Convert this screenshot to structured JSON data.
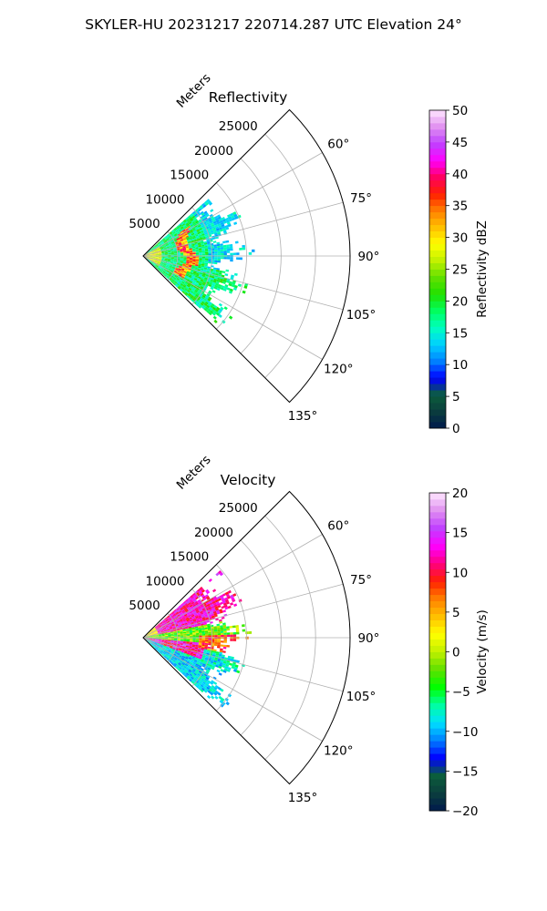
{
  "figure": {
    "suptitle": "SKYLER-HU  20231217  220714.287 UTC Elevation 24°"
  },
  "chart_data": [
    {
      "type": "heatmap",
      "projection": "polar-sector",
      "title": "Reflectivity",
      "radial_label": "Meters",
      "radial_ticks": [
        5000,
        10000,
        15000,
        20000,
        25000
      ],
      "radial_tick_labels": [
        "5000",
        "10000",
        "15000",
        "20000",
        "25000"
      ],
      "rmax": 30000,
      "azimuth_range_deg": [
        45,
        135
      ],
      "azimuth_ticks": [
        60,
        75,
        90,
        105,
        120,
        135
      ],
      "azimuth_tick_labels": [
        "60°",
        "75°",
        "90°",
        "105°",
        "120°",
        "135°"
      ],
      "grid": true,
      "data_extent_m": 15000,
      "colorbar": {
        "label": "Reflectivity dBZ",
        "min": 0,
        "max": 50,
        "ticks": [
          0,
          5,
          10,
          15,
          20,
          25,
          30,
          35,
          40,
          45,
          50
        ],
        "tick_labels": [
          "0",
          "5",
          "10",
          "15",
          "20",
          "25",
          "30",
          "35",
          "40",
          "45",
          "50"
        ],
        "stops": [
          "#001a4d",
          "#0b3d3d",
          "#0b5e3c",
          "#0000ff",
          "#0080ff",
          "#00d0ff",
          "#00ffc0",
          "#00ff60",
          "#20e000",
          "#60e000",
          "#c0f000",
          "#ffff00",
          "#ffc000",
          "#ff8000",
          "#ff2000",
          "#ff0060",
          "#ff00ff",
          "#c040ff",
          "#e090f0",
          "#ffe6ff"
        ]
      },
      "pattern": [
        {
          "theta_deg": [
            47,
            58
          ],
          "r_m": [
            0,
            14500
          ],
          "band": "green-cyan"
        },
        {
          "theta_deg": [
            58,
            80
          ],
          "r_m": [
            0,
            13500
          ],
          "band": "green-cyan"
        },
        {
          "theta_deg": [
            80,
            100
          ],
          "r_m": [
            0,
            14000
          ],
          "band": "cyan-green"
        },
        {
          "theta_deg": [
            100,
            125
          ],
          "r_m": [
            0,
            15500
          ],
          "band": "green-cyan"
        },
        {
          "theta_deg": [
            55,
            115
          ],
          "r_m": [
            5500,
            7000
          ],
          "band": "yellow-red"
        },
        {
          "theta_deg": [
            60,
            122
          ],
          "r_m": [
            1000,
            3000
          ],
          "band": "yellow-orange"
        }
      ]
    },
    {
      "type": "heatmap",
      "projection": "polar-sector",
      "title": "Velocity",
      "radial_label": "Meters",
      "radial_ticks": [
        5000,
        10000,
        15000,
        20000,
        25000
      ],
      "radial_tick_labels": [
        "5000",
        "10000",
        "15000",
        "20000",
        "25000"
      ],
      "rmax": 30000,
      "azimuth_range_deg": [
        45,
        135
      ],
      "azimuth_ticks": [
        60,
        75,
        90,
        105,
        120,
        135
      ],
      "azimuth_tick_labels": [
        "60°",
        "75°",
        "90°",
        "105°",
        "120°",
        "135°"
      ],
      "grid": true,
      "data_extent_m": 15000,
      "colorbar": {
        "label": "Velocity (m/s)",
        "min": -20,
        "max": 20,
        "ticks": [
          -20,
          -15,
          -10,
          -5,
          0,
          5,
          10,
          15,
          20
        ],
        "tick_labels": [
          "−20",
          "−15",
          "−10",
          "−5",
          "0",
          "5",
          "10",
          "15",
          "20"
        ],
        "stops": [
          "#001a4d",
          "#0b3d3d",
          "#0b5e3c",
          "#0000ff",
          "#0080ff",
          "#00e0ff",
          "#00ffa0",
          "#00ff00",
          "#60e000",
          "#c0f000",
          "#ffff00",
          "#ffc000",
          "#ff8000",
          "#ff2000",
          "#ff0080",
          "#ff00ff",
          "#c040ff",
          "#e090f0",
          "#ffe6ff"
        ]
      },
      "pattern": [
        {
          "theta_deg": [
            55,
            78
          ],
          "r_m": [
            2000,
            12500
          ],
          "band": "red-magenta"
        },
        {
          "theta_deg": [
            78,
            95
          ],
          "r_m": [
            0,
            12000
          ],
          "band": "yellow-green"
        },
        {
          "theta_deg": [
            95,
            110
          ],
          "r_m": [
            0,
            9000
          ],
          "band": "red-magenta"
        },
        {
          "theta_deg": [
            108,
            125
          ],
          "r_m": [
            5000,
            14500
          ],
          "band": "green-cyan"
        },
        {
          "theta_deg": [
            88,
            100
          ],
          "r_m": [
            8000,
            15500
          ],
          "band": "yellow-red"
        }
      ]
    }
  ]
}
